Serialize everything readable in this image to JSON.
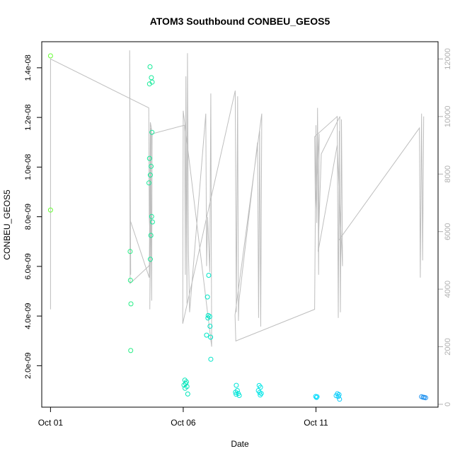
{
  "chart_data": {
    "type": "scatter",
    "title": "ATOM3 Southbound CONBEU_GEOS5",
    "xlabel": "Date",
    "ylabel": "CONBEU_GEOS5",
    "x_unit": "day of October",
    "xlim": [
      0.67,
      15.6
    ],
    "ylim": [
      3.3e-10,
      1.505e-08
    ],
    "y2lim": [
      -100,
      12600
    ],
    "x_ticks": [
      {
        "value": 1,
        "label": "Oct 01"
      },
      {
        "value": 6,
        "label": "Oct 06"
      },
      {
        "value": 11,
        "label": "Oct 11"
      }
    ],
    "y_ticks": [
      {
        "value": 2e-09,
        "label": "2.0e-09"
      },
      {
        "value": 4e-09,
        "label": "4.0e-09"
      },
      {
        "value": 6e-09,
        "label": "6.0e-09"
      },
      {
        "value": 8e-09,
        "label": "8.0e-09"
      },
      {
        "value": 1e-08,
        "label": "1.0e-08"
      },
      {
        "value": 1.2e-08,
        "label": "1.2e-08"
      },
      {
        "value": 1.4e-08,
        "label": "1.4e-08"
      }
    ],
    "y2_ticks": [
      {
        "value": 0,
        "label": "0"
      },
      {
        "value": 2000,
        "label": "2000"
      },
      {
        "value": 4000,
        "label": "4000"
      },
      {
        "value": 6000,
        "label": "6000"
      },
      {
        "value": 8000,
        "label": "8000"
      },
      {
        "value": 10000,
        "label": "10000"
      },
      {
        "value": 12000,
        "label": "12000"
      }
    ],
    "point_color_scale": [
      "#66ff33",
      "#00e5b3",
      "#00e5ff",
      "#1f8fef"
    ],
    "line_color": "#bebebe",
    "grid": false,
    "legend": "none",
    "points": [
      {
        "x": 1.0,
        "y": 1.448e-08
      },
      {
        "x": 1.0,
        "y": 8.27e-09
      },
      {
        "x": 4.0,
        "y": 6.6e-09
      },
      {
        "x": 4.01,
        "y": 5.44e-09
      },
      {
        "x": 4.03,
        "y": 4.49e-09
      },
      {
        "x": 4.02,
        "y": 2.61e-09
      },
      {
        "x": 4.75,
        "y": 1.404e-08
      },
      {
        "x": 4.8,
        "y": 1.36e-08
      },
      {
        "x": 4.83,
        "y": 1.342e-08
      },
      {
        "x": 4.73,
        "y": 1.335e-08
      },
      {
        "x": 4.82,
        "y": 1.14e-08
      },
      {
        "x": 4.73,
        "y": 1.035e-08
      },
      {
        "x": 4.79,
        "y": 1.003e-08
      },
      {
        "x": 4.76,
        "y": 9.68e-09
      },
      {
        "x": 4.71,
        "y": 9.36e-09
      },
      {
        "x": 4.81,
        "y": 8.01e-09
      },
      {
        "x": 4.84,
        "y": 7.79e-09
      },
      {
        "x": 4.78,
        "y": 7.25e-09
      },
      {
        "x": 4.76,
        "y": 6.29e-09
      },
      {
        "x": 6.06,
        "y": 1.42e-09
      },
      {
        "x": 6.12,
        "y": 1.35e-09
      },
      {
        "x": 6.09,
        "y": 1.28e-09
      },
      {
        "x": 6.03,
        "y": 1.22e-09
      },
      {
        "x": 6.14,
        "y": 1.16e-09
      },
      {
        "x": 6.07,
        "y": 1.09e-09
      },
      {
        "x": 6.17,
        "y": 8.6e-10
      },
      {
        "x": 6.96,
        "y": 5.64e-09
      },
      {
        "x": 6.91,
        "y": 4.77e-09
      },
      {
        "x": 6.94,
        "y": 4.02e-09
      },
      {
        "x": 7.0,
        "y": 3.98e-09
      },
      {
        "x": 6.93,
        "y": 3.92e-09
      },
      {
        "x": 7.01,
        "y": 3.59e-09
      },
      {
        "x": 6.88,
        "y": 3.23e-09
      },
      {
        "x": 7.03,
        "y": 3.15e-09
      },
      {
        "x": 7.04,
        "y": 2.26e-09
      },
      {
        "x": 8.0,
        "y": 1.21e-09
      },
      {
        "x": 8.04,
        "y": 1e-09
      },
      {
        "x": 7.97,
        "y": 9.3e-10
      },
      {
        "x": 8.07,
        "y": 8.8e-10
      },
      {
        "x": 7.99,
        "y": 8.5e-10
      },
      {
        "x": 8.11,
        "y": 8e-10
      },
      {
        "x": 8.86,
        "y": 1.2e-09
      },
      {
        "x": 8.91,
        "y": 1.13e-09
      },
      {
        "x": 8.83,
        "y": 1e-09
      },
      {
        "x": 8.88,
        "y": 9.2e-10
      },
      {
        "x": 8.94,
        "y": 8.8e-10
      },
      {
        "x": 8.9,
        "y": 8.2e-10
      },
      {
        "x": 10.99,
        "y": 7.6e-10
      },
      {
        "x": 11.04,
        "y": 7.5e-10
      },
      {
        "x": 11.02,
        "y": 7.2e-10
      },
      {
        "x": 11.81,
        "y": 8.7e-10
      },
      {
        "x": 11.87,
        "y": 8.3e-10
      },
      {
        "x": 11.76,
        "y": 7.9e-10
      },
      {
        "x": 11.84,
        "y": 7.6e-10
      },
      {
        "x": 11.89,
        "y": 6.5e-10
      },
      {
        "x": 14.98,
        "y": 7.5e-10
      },
      {
        "x": 15.04,
        "y": 7.3e-10
      },
      {
        "x": 15.08,
        "y": 7.2e-10
      },
      {
        "x": 15.13,
        "y": 7.1e-10
      }
    ],
    "altitude_line": [
      [
        1.0,
        3300
      ],
      [
        1.0,
        12000
      ],
      [
        4.7,
        10300
      ],
      [
        4.72,
        6500
      ],
      [
        4.75,
        5800
      ],
      [
        4.78,
        9600
      ],
      [
        4.8,
        5000
      ],
      [
        4.7,
        4800
      ],
      [
        4.0,
        4200
      ],
      [
        3.98,
        12300
      ],
      [
        4.02,
        4500
      ],
      [
        4.0,
        6400
      ],
      [
        4.72,
        4400
      ],
      [
        4.76,
        9800
      ],
      [
        4.8,
        9600
      ],
      [
        4.74,
        3300
      ],
      [
        4.77,
        8100
      ],
      [
        4.81,
        3600
      ],
      [
        4.83,
        9400
      ],
      [
        6.05,
        9700
      ],
      [
        6.08,
        4500
      ],
      [
        6.1,
        11400
      ],
      [
        6.14,
        3500
      ],
      [
        6.16,
        12200
      ],
      [
        6.2,
        5200
      ],
      [
        6.24,
        3200
      ],
      [
        6.85,
        10100
      ],
      [
        6.88,
        4800
      ],
      [
        6.92,
        6500
      ],
      [
        7.0,
        4600
      ],
      [
        7.04,
        10800
      ],
      [
        7.07,
        2000
      ],
      [
        6.0,
        10200
      ],
      [
        5.98,
        2800
      ],
      [
        7.96,
        10900
      ],
      [
        8.0,
        3200
      ],
      [
        8.05,
        10700
      ],
      [
        8.08,
        2900
      ],
      [
        8.1,
        3600
      ],
      [
        8.8,
        9100
      ],
      [
        8.84,
        3000
      ],
      [
        8.88,
        9500
      ],
      [
        8.92,
        2700
      ],
      [
        8.96,
        10100
      ],
      [
        7.95,
        3100
      ],
      [
        7.98,
        2200
      ],
      [
        10.95,
        3300
      ],
      [
        11.0,
        9700
      ],
      [
        11.03,
        6300
      ],
      [
        11.06,
        10300
      ],
      [
        11.1,
        4500
      ],
      [
        11.12,
        9400
      ],
      [
        10.98,
        6800
      ],
      [
        10.95,
        9300
      ],
      [
        11.8,
        10000
      ],
      [
        11.84,
        3000
      ],
      [
        11.88,
        9500
      ],
      [
        11.92,
        3200
      ],
      [
        11.96,
        9900
      ],
      [
        12.0,
        4800
      ],
      [
        11.8,
        9000
      ],
      [
        11.08,
        5300
      ],
      [
        11.2,
        8700
      ],
      [
        11.9,
        10000
      ],
      [
        11.86,
        5700
      ],
      [
        14.9,
        9600
      ],
      [
        14.93,
        4400
      ],
      [
        14.98,
        10100
      ],
      [
        15.02,
        5000
      ],
      [
        15.06,
        10000
      ]
    ]
  }
}
